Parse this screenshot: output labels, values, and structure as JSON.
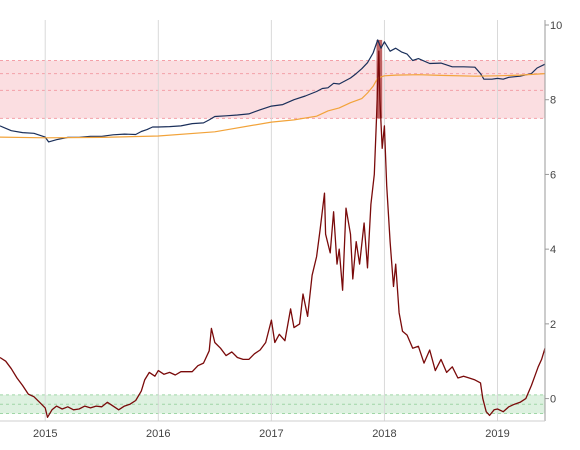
{
  "chart_data": {
    "type": "line",
    "title": "",
    "xlabel": "",
    "ylabel": "",
    "x_ticks": [
      "2015",
      "2016",
      "2017",
      "2018",
      "2019"
    ],
    "x_tick_values": [
      2015,
      2016,
      2017,
      2018,
      2019
    ],
    "xlim": [
      2014.6,
      2019.42
    ],
    "y_ticks": [
      "0",
      "2",
      "4",
      "6",
      "8",
      "10"
    ],
    "y_tick_values": [
      0,
      2,
      4,
      6,
      8,
      10
    ],
    "ylim": [
      -0.6,
      10
    ],
    "grid": "vertical lines at x ticks",
    "bands": [
      {
        "name": "upper",
        "lower": 7.5,
        "upper": 9.05,
        "inner_lines": [
          8.7,
          8.25
        ],
        "color": "#f4a0a8"
      },
      {
        "name": "lower",
        "lower": -0.4,
        "upper": 0.1,
        "inner_lines": [
          -0.15
        ],
        "color": "#9fd6a6"
      }
    ],
    "series": [
      {
        "key": "upper_price",
        "color": "#1a2f5a",
        "points": [
          [
            2014.6,
            7.3
          ],
          [
            2014.7,
            7.17
          ],
          [
            2014.8,
            7.12
          ],
          [
            2014.9,
            7.1
          ],
          [
            2015.0,
            7.0
          ],
          [
            2015.03,
            6.87
          ],
          [
            2015.1,
            6.93
          ],
          [
            2015.2,
            6.99
          ],
          [
            2015.3,
            6.99
          ],
          [
            2015.4,
            7.02
          ],
          [
            2015.5,
            7.02
          ],
          [
            2015.6,
            7.06
          ],
          [
            2015.7,
            7.08
          ],
          [
            2015.8,
            7.07
          ],
          [
            2015.85,
            7.15
          ],
          [
            2015.9,
            7.2
          ],
          [
            2015.95,
            7.27
          ],
          [
            2016.0,
            7.27
          ],
          [
            2016.1,
            7.28
          ],
          [
            2016.2,
            7.3
          ],
          [
            2016.3,
            7.36
          ],
          [
            2016.4,
            7.38
          ],
          [
            2016.45,
            7.46
          ],
          [
            2016.5,
            7.55
          ],
          [
            2016.6,
            7.57
          ],
          [
            2016.7,
            7.59
          ],
          [
            2016.8,
            7.62
          ],
          [
            2016.9,
            7.73
          ],
          [
            2017.0,
            7.83
          ],
          [
            2017.1,
            7.87
          ],
          [
            2017.2,
            8.0
          ],
          [
            2017.3,
            8.1
          ],
          [
            2017.4,
            8.22
          ],
          [
            2017.45,
            8.3
          ],
          [
            2017.5,
            8.32
          ],
          [
            2017.55,
            8.44
          ],
          [
            2017.6,
            8.42
          ],
          [
            2017.7,
            8.58
          ],
          [
            2017.75,
            8.7
          ],
          [
            2017.8,
            8.83
          ],
          [
            2017.85,
            8.99
          ],
          [
            2017.9,
            9.25
          ],
          [
            2017.94,
            9.6
          ],
          [
            2017.97,
            9.38
          ],
          [
            2018.0,
            9.55
          ],
          [
            2018.05,
            9.3
          ],
          [
            2018.1,
            9.38
          ],
          [
            2018.15,
            9.28
          ],
          [
            2018.2,
            9.22
          ],
          [
            2018.25,
            9.05
          ],
          [
            2018.3,
            9.1
          ],
          [
            2018.4,
            8.97
          ],
          [
            2018.5,
            8.98
          ],
          [
            2018.6,
            8.88
          ],
          [
            2018.7,
            8.88
          ],
          [
            2018.8,
            8.87
          ],
          [
            2018.85,
            8.7
          ],
          [
            2018.88,
            8.55
          ],
          [
            2018.95,
            8.55
          ],
          [
            2019.0,
            8.57
          ],
          [
            2019.05,
            8.55
          ],
          [
            2019.1,
            8.6
          ],
          [
            2019.2,
            8.63
          ],
          [
            2019.3,
            8.7
          ],
          [
            2019.35,
            8.85
          ],
          [
            2019.42,
            8.95
          ]
        ]
      },
      {
        "key": "upper_trend",
        "color": "#f2a33a",
        "points": [
          [
            2014.6,
            7.0
          ],
          [
            2015.0,
            6.98
          ],
          [
            2015.5,
            6.99
          ],
          [
            2016.0,
            7.03
          ],
          [
            2016.5,
            7.14
          ],
          [
            2017.0,
            7.4
          ],
          [
            2017.2,
            7.46
          ],
          [
            2017.4,
            7.56
          ],
          [
            2017.5,
            7.7
          ],
          [
            2017.6,
            7.78
          ],
          [
            2017.7,
            7.92
          ],
          [
            2017.8,
            8.03
          ],
          [
            2017.85,
            8.18
          ],
          [
            2017.9,
            8.36
          ],
          [
            2017.94,
            8.58
          ],
          [
            2018.0,
            8.64
          ],
          [
            2018.1,
            8.66
          ],
          [
            2018.3,
            8.67
          ],
          [
            2018.5,
            8.65
          ],
          [
            2018.8,
            8.63
          ],
          [
            2019.0,
            8.64
          ],
          [
            2019.2,
            8.66
          ],
          [
            2019.42,
            8.7
          ]
        ]
      },
      {
        "key": "oscillator",
        "color": "#7a0a0a",
        "points": [
          [
            2014.6,
            1.1
          ],
          [
            2014.65,
            1.0
          ],
          [
            2014.7,
            0.8
          ],
          [
            2014.75,
            0.55
          ],
          [
            2014.8,
            0.35
          ],
          [
            2014.85,
            0.12
          ],
          [
            2014.9,
            0.05
          ],
          [
            2014.95,
            -0.1
          ],
          [
            2015.0,
            -0.25
          ],
          [
            2015.02,
            -0.5
          ],
          [
            2015.06,
            -0.3
          ],
          [
            2015.1,
            -0.2
          ],
          [
            2015.15,
            -0.28
          ],
          [
            2015.2,
            -0.22
          ],
          [
            2015.25,
            -0.3
          ],
          [
            2015.3,
            -0.28
          ],
          [
            2015.35,
            -0.2
          ],
          [
            2015.4,
            -0.25
          ],
          [
            2015.45,
            -0.2
          ],
          [
            2015.5,
            -0.22
          ],
          [
            2015.55,
            -0.1
          ],
          [
            2015.6,
            -0.2
          ],
          [
            2015.65,
            -0.3
          ],
          [
            2015.7,
            -0.2
          ],
          [
            2015.75,
            -0.15
          ],
          [
            2015.8,
            -0.05
          ],
          [
            2015.85,
            0.2
          ],
          [
            2015.88,
            0.5
          ],
          [
            2015.92,
            0.7
          ],
          [
            2015.97,
            0.6
          ],
          [
            2016.0,
            0.75
          ],
          [
            2016.05,
            0.65
          ],
          [
            2016.1,
            0.7
          ],
          [
            2016.15,
            0.63
          ],
          [
            2016.2,
            0.72
          ],
          [
            2016.3,
            0.72
          ],
          [
            2016.35,
            0.88
          ],
          [
            2016.4,
            0.95
          ],
          [
            2016.45,
            1.28
          ],
          [
            2016.47,
            1.88
          ],
          [
            2016.5,
            1.5
          ],
          [
            2016.55,
            1.35
          ],
          [
            2016.6,
            1.15
          ],
          [
            2016.65,
            1.25
          ],
          [
            2016.7,
            1.1
          ],
          [
            2016.75,
            1.05
          ],
          [
            2016.8,
            1.05
          ],
          [
            2016.85,
            1.2
          ],
          [
            2016.9,
            1.3
          ],
          [
            2016.95,
            1.5
          ],
          [
            2017.0,
            2.1
          ],
          [
            2017.03,
            1.5
          ],
          [
            2017.07,
            1.72
          ],
          [
            2017.12,
            1.55
          ],
          [
            2017.17,
            2.4
          ],
          [
            2017.2,
            1.9
          ],
          [
            2017.25,
            2.0
          ],
          [
            2017.28,
            2.8
          ],
          [
            2017.32,
            2.2
          ],
          [
            2017.36,
            3.3
          ],
          [
            2017.4,
            3.8
          ],
          [
            2017.43,
            4.5
          ],
          [
            2017.47,
            5.5
          ],
          [
            2017.48,
            4.4
          ],
          [
            2017.52,
            3.9
          ],
          [
            2017.55,
            5.0
          ],
          [
            2017.58,
            3.6
          ],
          [
            2017.6,
            4.0
          ],
          [
            2017.63,
            2.9
          ],
          [
            2017.66,
            5.1
          ],
          [
            2017.7,
            4.4
          ],
          [
            2017.72,
            3.2
          ],
          [
            2017.75,
            4.2
          ],
          [
            2017.78,
            3.6
          ],
          [
            2017.82,
            4.7
          ],
          [
            2017.85,
            3.5
          ],
          [
            2017.88,
            5.2
          ],
          [
            2017.91,
            6.0
          ],
          [
            2017.93,
            7.5
          ],
          [
            2017.95,
            9.3
          ],
          [
            2017.96,
            8.0
          ],
          [
            2017.98,
            6.7
          ],
          [
            2018.0,
            7.3
          ],
          [
            2018.02,
            5.7
          ],
          [
            2018.05,
            4.2
          ],
          [
            2018.08,
            3.0
          ],
          [
            2018.1,
            3.6
          ],
          [
            2018.13,
            2.3
          ],
          [
            2018.16,
            1.8
          ],
          [
            2018.2,
            1.7
          ],
          [
            2018.25,
            1.35
          ],
          [
            2018.3,
            1.4
          ],
          [
            2018.35,
            0.95
          ],
          [
            2018.4,
            1.3
          ],
          [
            2018.45,
            0.75
          ],
          [
            2018.5,
            1.05
          ],
          [
            2018.55,
            0.7
          ],
          [
            2018.6,
            0.85
          ],
          [
            2018.65,
            0.55
          ],
          [
            2018.7,
            0.6
          ],
          [
            2018.75,
            0.55
          ],
          [
            2018.8,
            0.5
          ],
          [
            2018.85,
            0.42
          ],
          [
            2018.87,
            0.0
          ],
          [
            2018.9,
            -0.35
          ],
          [
            2018.93,
            -0.45
          ],
          [
            2018.97,
            -0.3
          ],
          [
            2019.0,
            -0.28
          ],
          [
            2019.05,
            -0.35
          ],
          [
            2019.1,
            -0.22
          ],
          [
            2019.15,
            -0.15
          ],
          [
            2019.2,
            -0.1
          ],
          [
            2019.25,
            0.0
          ],
          [
            2019.3,
            0.35
          ],
          [
            2019.33,
            0.6
          ],
          [
            2019.36,
            0.85
          ],
          [
            2019.39,
            1.05
          ],
          [
            2019.42,
            1.35
          ]
        ]
      }
    ],
    "highlight": {
      "x_from": 2017.93,
      "x_to": 2017.98,
      "y_from": 7.5,
      "y_to": 9.6,
      "color": "#b34a4a"
    }
  }
}
